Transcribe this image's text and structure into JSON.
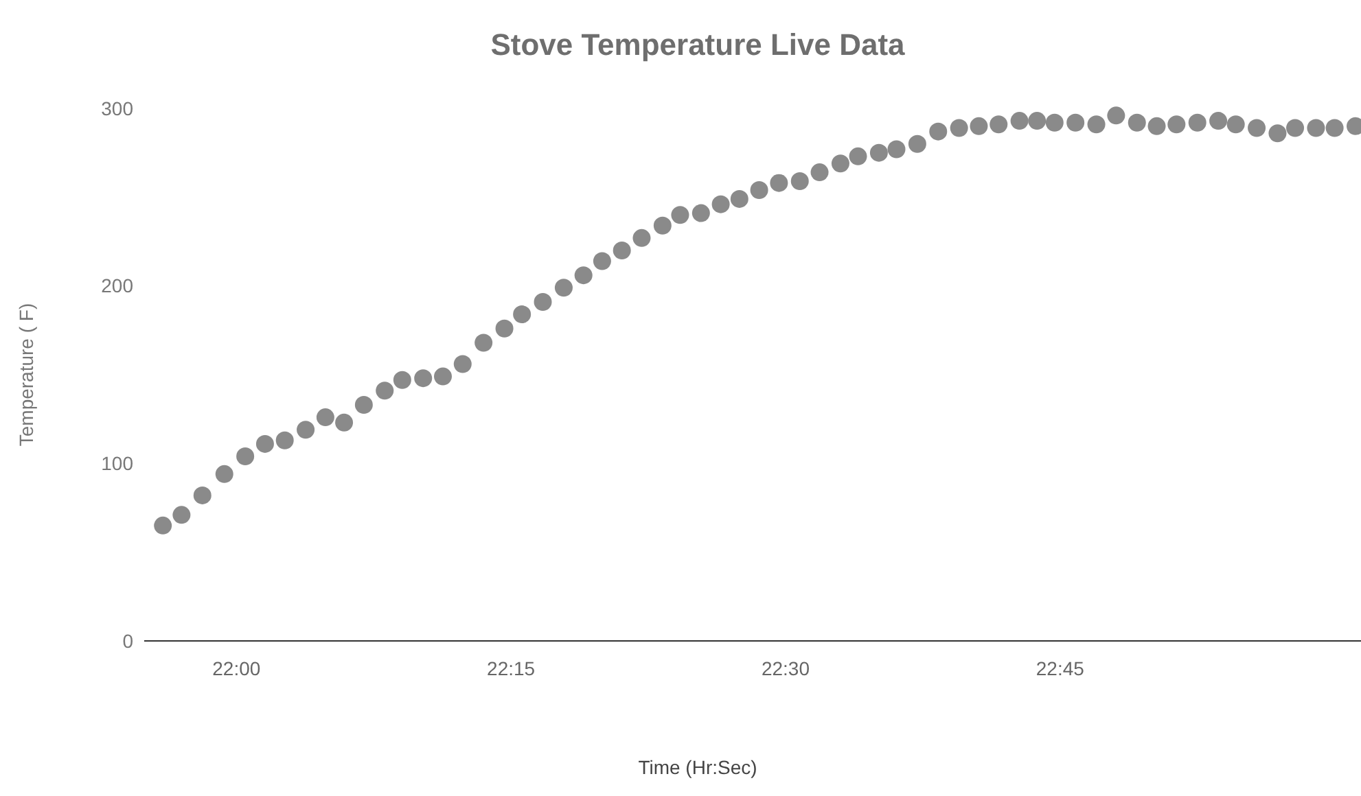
{
  "chart_data": {
    "type": "scatter",
    "title": "Stove Temperature Live Data",
    "xlabel": "Time (Hr:Sec)",
    "ylabel": "Temperature ( F)",
    "x": [
      21.933,
      21.95,
      21.969,
      21.989,
      22.008,
      22.026,
      22.044,
      22.063,
      22.081,
      22.098,
      22.116,
      22.135,
      22.151,
      22.17,
      22.188,
      22.206,
      22.225,
      22.244,
      22.26,
      22.279,
      22.298,
      22.316,
      22.333,
      22.351,
      22.369,
      22.388,
      22.404,
      22.423,
      22.441,
      22.458,
      22.476,
      22.494,
      22.513,
      22.531,
      22.55,
      22.566,
      22.585,
      22.601,
      22.62,
      22.639,
      22.658,
      22.676,
      22.694,
      22.713,
      22.729,
      22.745,
      22.764,
      22.783,
      22.801,
      22.82,
      22.838,
      22.856,
      22.875,
      22.894,
      22.91,
      22.929,
      22.948,
      22.964,
      22.983,
      23.0,
      23.019
    ],
    "series": [
      {
        "color": "#8a8a8a",
        "values": [
          65,
          71,
          82,
          94,
          104,
          111,
          113,
          119,
          126,
          123,
          133,
          141,
          147,
          148,
          149,
          156,
          168,
          176,
          184,
          191,
          199,
          206,
          214,
          220,
          227,
          234,
          240,
          241,
          246,
          249,
          254,
          258,
          259,
          264,
          269,
          273,
          275,
          277,
          280,
          287,
          289,
          290,
          291,
          293,
          293,
          292,
          292,
          291,
          296,
          292,
          290,
          291,
          292,
          293,
          291,
          289,
          286,
          289,
          289,
          289,
          290
        ]
      }
    ],
    "xlim": [
      21.916,
      23.024
    ],
    "xticks": [
      {
        "value": 22,
        "label": "22:00"
      },
      {
        "value": 22.25,
        "label": "22:15"
      },
      {
        "value": 22.5,
        "label": "22:30"
      },
      {
        "value": 22.75,
        "label": "22:45"
      }
    ],
    "ylim": [
      0,
      300
    ],
    "yticks": [
      0,
      100,
      200,
      300
    ],
    "marker": "circle",
    "grid": false
  }
}
